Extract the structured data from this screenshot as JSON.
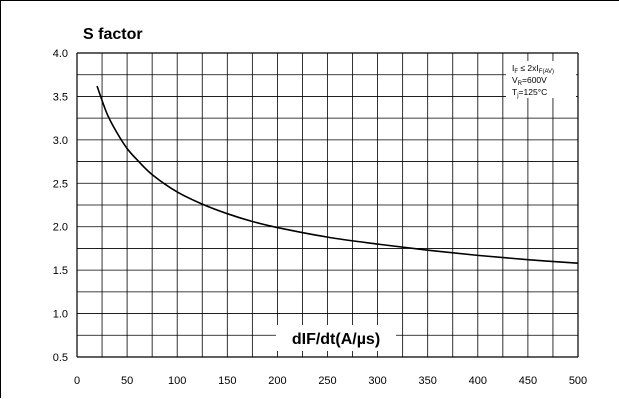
{
  "chart_data": {
    "type": "line",
    "title": "S factor",
    "xlabel": "dIF/dt(A/µs)",
    "ylabel": "",
    "xlim": [
      0,
      500
    ],
    "ylim": [
      0.5,
      4.0
    ],
    "x_ticks": [
      "0",
      "50",
      "100",
      "150",
      "200",
      "250",
      "300",
      "350",
      "400",
      "450",
      "500"
    ],
    "y_ticks": [
      "0.5",
      "1.0",
      "1.5",
      "2.0",
      "2.5",
      "3.0",
      "3.5",
      "4.0"
    ],
    "grid": true,
    "conditions": {
      "line1_main": "I",
      "line1_sub": "F",
      "line1_mid": " ≤ 2xI",
      "line1_sub2": "F(AV)",
      "line2_main": "V",
      "line2_sub": "R",
      "line2_rest": "=600V",
      "line3_main": "T",
      "line3_sub": "j",
      "line3_rest": "=125°C"
    },
    "series": [
      {
        "x": [
          20,
          30,
          40,
          50,
          60,
          75,
          100,
          125,
          150,
          175,
          200,
          250,
          300,
          350,
          400,
          450,
          500
        ],
        "values": [
          3.62,
          3.3,
          3.08,
          2.9,
          2.77,
          2.6,
          2.4,
          2.26,
          2.15,
          2.06,
          1.99,
          1.88,
          1.8,
          1.73,
          1.67,
          1.62,
          1.58
        ]
      }
    ],
    "line_color": "#000000",
    "grid_color": "#000000"
  }
}
